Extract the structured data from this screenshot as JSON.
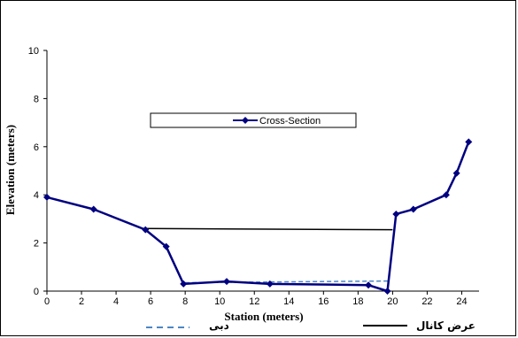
{
  "chart_data": {
    "type": "line",
    "xlabel": "Station (meters)",
    "ylabel": "Elevation (meters)",
    "xlim": [
      0,
      25
    ],
    "ylim": [
      0,
      10
    ],
    "xticks": [
      0,
      2,
      4,
      6,
      8,
      10,
      12,
      14,
      16,
      18,
      20,
      22,
      24
    ],
    "yticks": [
      0,
      2,
      4,
      6,
      8,
      10
    ],
    "grid": false,
    "legend": "top-center",
    "series": [
      {
        "name": "Cross-Section",
        "color": "#000080",
        "style": "line-with-diamond-markers",
        "x": [
          0,
          2.7,
          5.7,
          6.9,
          7.9,
          10.4,
          12.9,
          18.6,
          19.7,
          20.2,
          21.2,
          23.1,
          23.7,
          24.4
        ],
        "y": [
          3.9,
          3.4,
          2.55,
          1.85,
          0.3,
          0.4,
          0.3,
          0.25,
          0.0,
          3.2,
          3.4,
          4.0,
          4.9,
          6.2
        ]
      },
      {
        "name": "عرض كانال",
        "color": "#000000",
        "style": "solid",
        "x": [
          5.7,
          20.0
        ],
        "y": [
          2.6,
          2.55
        ]
      },
      {
        "name": "دبی",
        "color": "#4a86c5",
        "style": "dashed",
        "x": [
          8.0,
          19.8
        ],
        "y": [
          0.35,
          0.42
        ]
      }
    ]
  }
}
